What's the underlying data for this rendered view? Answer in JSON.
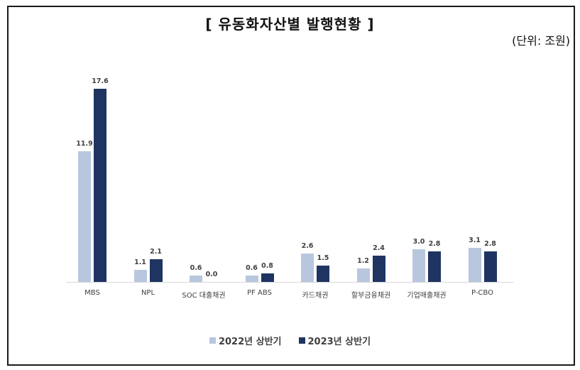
{
  "title": "[ 유동화자산별 발행현황 ]",
  "unit_label": "(단위: 조원)",
  "colors": {
    "series_2022": "#b8c7de",
    "series_2023": "#1f3461"
  },
  "chart_data": {
    "type": "bar",
    "title": "[ 유동화자산별 발행현황 ]",
    "subtitle": "(단위: 조원)",
    "xlabel": "",
    "ylabel": "조원",
    "categories": [
      "MBS",
      "NPL",
      "SOC 대출채권",
      "PF ABS",
      "카드채권",
      "할부금융채권",
      "기업매출채권",
      "P-CBO"
    ],
    "series": [
      {
        "name": "2022년 상반기",
        "color": "#b8c7de",
        "values": [
          11.9,
          1.1,
          0.6,
          0.6,
          2.6,
          1.2,
          3.0,
          3.1
        ]
      },
      {
        "name": "2023년 상반기",
        "color": "#1f3461",
        "values": [
          17.6,
          2.1,
          0.0,
          0.8,
          1.5,
          2.4,
          2.8,
          2.8
        ]
      }
    ],
    "ylim": [
      0,
      18
    ],
    "grid": false,
    "legend_position": "bottom",
    "data_labels": true
  },
  "legend": [
    {
      "label": "2022년 상반기"
    },
    {
      "label": "2023년 상반기"
    }
  ]
}
